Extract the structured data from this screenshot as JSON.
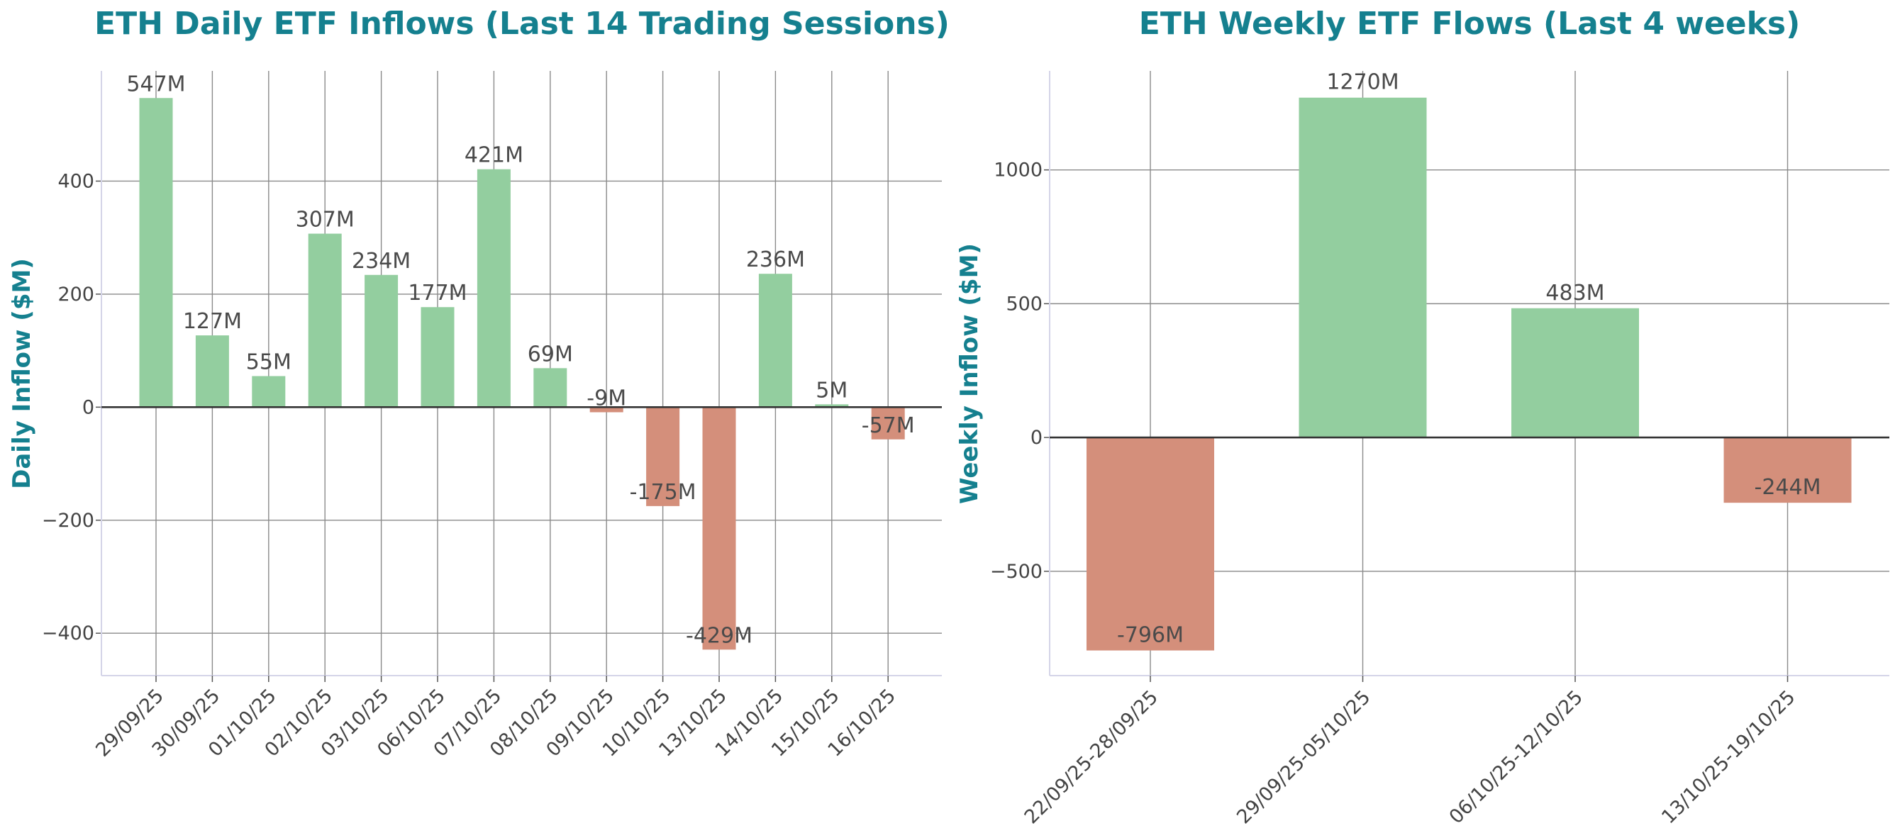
{
  "colors": {
    "positive": "#93ce9f",
    "negative": "#d48f7b",
    "title": "#15808f"
  },
  "chart_data": [
    {
      "type": "bar",
      "title": "ETH Daily ETF Inflows (Last 14 Trading Sessions)",
      "xlabel": "",
      "ylabel": "Daily Inflow ($M)",
      "ylim": [
        -475,
        595
      ],
      "yticks": [
        -400,
        -200,
        0,
        200,
        400
      ],
      "ytick_labels": [
        "−400",
        "−200",
        "0",
        "200",
        "400"
      ],
      "grid": true,
      "categories": [
        "29/09/25",
        "30/09/25",
        "01/10/25",
        "02/10/25",
        "03/10/25",
        "06/10/25",
        "07/10/25",
        "08/10/25",
        "09/10/25",
        "10/10/25",
        "13/10/25",
        "14/10/25",
        "15/10/25",
        "16/10/25"
      ],
      "values": [
        547,
        127,
        55,
        307,
        234,
        177,
        421,
        69,
        -9,
        -175,
        -429,
        236,
        5,
        -57
      ],
      "value_labels": [
        "547M",
        "127M",
        "55M",
        "307M",
        "234M",
        "177M",
        "421M",
        "69M",
        "-9M",
        "-175M",
        "-429M",
        "236M",
        "5M",
        "-57M"
      ]
    },
    {
      "type": "bar",
      "title": "ETH Weekly ETF Flows (Last 4 weeks)",
      "xlabel": "",
      "ylabel": "Weekly Inflow ($M)",
      "ylim": [
        -890,
        1370
      ],
      "yticks": [
        -500,
        0,
        500,
        1000
      ],
      "ytick_labels": [
        "−500",
        "0",
        "500",
        "1000"
      ],
      "grid": true,
      "categories": [
        "22/09/25-28/09/25",
        "29/09/25-05/10/25",
        "06/10/25-12/10/25",
        "13/10/25-19/10/25"
      ],
      "values": [
        -796,
        1270,
        483,
        -244
      ],
      "value_labels": [
        "-796M",
        "1270M",
        "483M",
        "-244M"
      ]
    }
  ]
}
